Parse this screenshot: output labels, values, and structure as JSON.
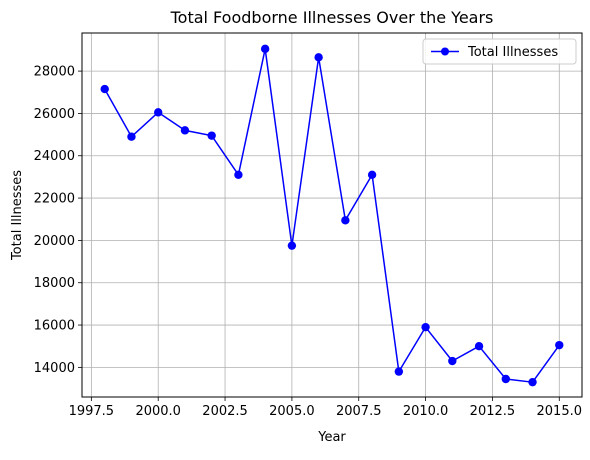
{
  "chart_data": {
    "type": "line",
    "title": "Total Foodborne Illnesses Over the Years",
    "xlabel": "Year",
    "ylabel": "Total Illnesses",
    "xlim": [
      1997.15,
      2015.85
    ],
    "ylim": [
      12600,
      29800
    ],
    "x_ticks": [
      1997.5,
      2000.0,
      2002.5,
      2005.0,
      2007.5,
      2010.0,
      2012.5,
      2015.0
    ],
    "x_tick_labels": [
      "1997.5",
      "2000.0",
      "2002.5",
      "2005.0",
      "2007.5",
      "2010.0",
      "2012.5",
      "2015.0"
    ],
    "y_ticks": [
      14000,
      16000,
      18000,
      20000,
      22000,
      24000,
      26000,
      28000
    ],
    "y_tick_labels": [
      "14000",
      "16000",
      "18000",
      "20000",
      "22000",
      "24000",
      "26000",
      "28000"
    ],
    "grid": true,
    "legend_position": "top-right",
    "series": [
      {
        "name": "Total Illnesses",
        "color": "#0000ff",
        "marker": "circle",
        "x": [
          1998,
          1999,
          2000,
          2001,
          2002,
          2003,
          2004,
          2005,
          2006,
          2007,
          2008,
          2009,
          2010,
          2011,
          2012,
          2013,
          2014,
          2015
        ],
        "y": [
          27150,
          24900,
          26050,
          25200,
          24950,
          23100,
          29050,
          19750,
          28650,
          20950,
          23100,
          13800,
          15900,
          14300,
          15000,
          13450,
          13300,
          15050
        ]
      }
    ]
  }
}
